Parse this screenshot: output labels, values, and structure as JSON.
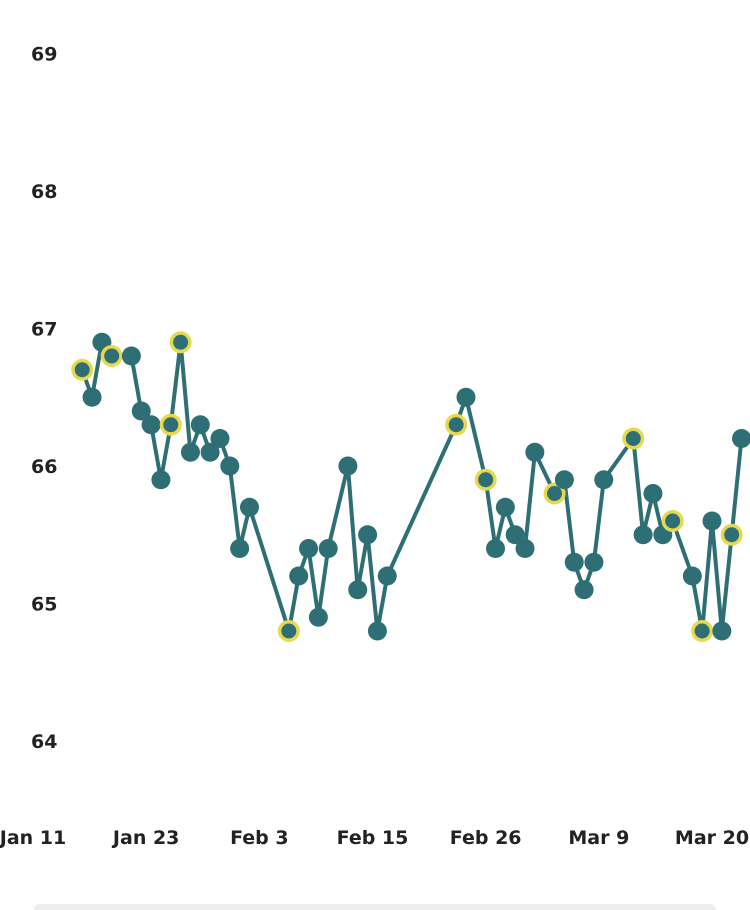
{
  "chart_data": {
    "type": "scatter",
    "title": "",
    "xlabel": "",
    "ylabel": "",
    "x_tick_labels": [
      "Jan 11",
      "Jan 23",
      "Feb 3",
      "Feb 15",
      "Feb 26",
      "Mar 9",
      "Mar 20"
    ],
    "y_tick_labels": [
      "64",
      "65",
      "66",
      "67",
      "68",
      "69"
    ],
    "ylim": [
      63.6,
      69.3
    ],
    "xlim": [
      "2024-01-11",
      "2024-03-20"
    ],
    "grid": false,
    "legend": "none",
    "colors": {
      "line": "#2e6f75",
      "point": "#2e6f75",
      "highlight_ring": "#e6d94f"
    },
    "series": [
      {
        "values": [
          {
            "x": "2024-01-16",
            "y": 66.7,
            "highlight": true
          },
          {
            "x": "2024-01-17",
            "y": 66.5
          },
          {
            "x": "2024-01-18",
            "y": 66.9
          },
          {
            "x": "2024-01-19",
            "y": 66.8,
            "highlight": true
          },
          {
            "x": "2024-01-21",
            "y": 66.8
          },
          {
            "x": "2024-01-22",
            "y": 66.4
          },
          {
            "x": "2024-01-23",
            "y": 66.3
          },
          {
            "x": "2024-01-24",
            "y": 65.9
          },
          {
            "x": "2024-01-25",
            "y": 66.3,
            "highlight": true
          },
          {
            "x": "2024-01-26",
            "y": 66.9,
            "highlight": true
          },
          {
            "x": "2024-01-27",
            "y": 66.1
          },
          {
            "x": "2024-01-28",
            "y": 66.3
          },
          {
            "x": "2024-01-29",
            "y": 66.1
          },
          {
            "x": "2024-01-30",
            "y": 66.2
          },
          {
            "x": "2024-01-31",
            "y": 66.0
          },
          {
            "x": "2024-02-01",
            "y": 65.4
          },
          {
            "x": "2024-02-02",
            "y": 65.7
          },
          {
            "x": "2024-02-06",
            "y": 64.8,
            "highlight": true
          },
          {
            "x": "2024-02-07",
            "y": 65.2
          },
          {
            "x": "2024-02-08",
            "y": 65.4
          },
          {
            "x": "2024-02-09",
            "y": 64.9
          },
          {
            "x": "2024-02-10",
            "y": 65.4
          },
          {
            "x": "2024-02-12",
            "y": 66.0
          },
          {
            "x": "2024-02-13",
            "y": 65.1
          },
          {
            "x": "2024-02-14",
            "y": 65.5
          },
          {
            "x": "2024-02-15",
            "y": 64.8
          },
          {
            "x": "2024-02-16",
            "y": 65.2
          },
          {
            "x": "2024-02-23",
            "y": 66.3,
            "highlight": true
          },
          {
            "x": "2024-02-24",
            "y": 66.5
          },
          {
            "x": "2024-02-26",
            "y": 65.9,
            "highlight": true
          },
          {
            "x": "2024-02-27",
            "y": 65.4
          },
          {
            "x": "2024-02-28",
            "y": 65.7
          },
          {
            "x": "2024-02-29",
            "y": 65.5
          },
          {
            "x": "2024-03-01",
            "y": 65.4
          },
          {
            "x": "2024-03-02",
            "y": 66.1
          },
          {
            "x": "2024-03-04",
            "y": 65.8,
            "highlight": true
          },
          {
            "x": "2024-03-05",
            "y": 65.9
          },
          {
            "x": "2024-03-06",
            "y": 65.3
          },
          {
            "x": "2024-03-07",
            "y": 65.1
          },
          {
            "x": "2024-03-08",
            "y": 65.3
          },
          {
            "x": "2024-03-09",
            "y": 65.9
          },
          {
            "x": "2024-03-12",
            "y": 66.2,
            "highlight": true
          },
          {
            "x": "2024-03-13",
            "y": 65.5
          },
          {
            "x": "2024-03-14",
            "y": 65.8
          },
          {
            "x": "2024-03-15",
            "y": 65.5
          },
          {
            "x": "2024-03-16",
            "y": 65.6,
            "highlight": true
          },
          {
            "x": "2024-03-18",
            "y": 65.2
          },
          {
            "x": "2024-03-19",
            "y": 64.8,
            "highlight": true
          },
          {
            "x": "2024-03-20",
            "y": 65.6
          },
          {
            "x": "2024-03-21",
            "y": 64.8
          },
          {
            "x": "2024-03-22",
            "y": 65.5,
            "highlight": true
          },
          {
            "x": "2024-03-23",
            "y": 66.2
          }
        ]
      }
    ]
  }
}
